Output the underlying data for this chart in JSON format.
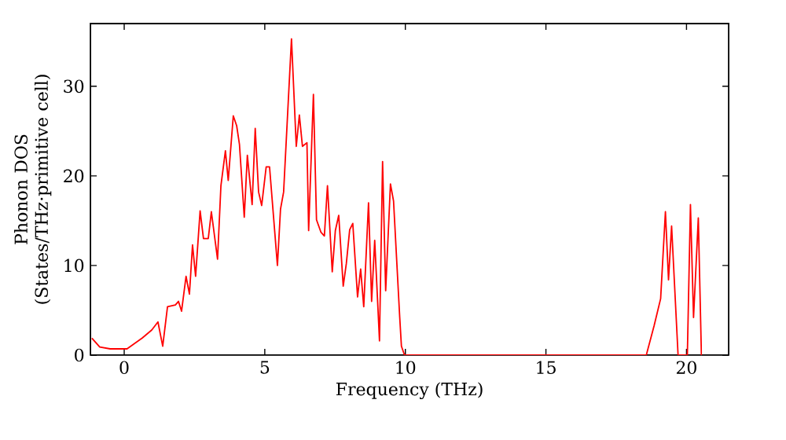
{
  "chart_data": {
    "type": "line",
    "xlabel": "Frequency (THz)",
    "ylabel": "Phonon DOS (States/THz·primitive cell)",
    "x": [
      -1.15,
      -0.87,
      -0.5,
      0.1,
      0.64,
      0.98,
      1.2,
      1.37,
      1.54,
      1.82,
      1.93,
      2.04,
      2.2,
      2.32,
      2.43,
      2.54,
      2.7,
      2.82,
      2.99,
      3.1,
      3.32,
      3.44,
      3.6,
      3.7,
      3.88,
      4.0,
      4.1,
      4.27,
      4.38,
      4.55,
      4.66,
      4.78,
      4.89,
      5.05,
      5.17,
      5.45,
      5.56,
      5.67,
      5.95,
      6.12,
      6.23,
      6.34,
      6.5,
      6.56,
      6.73,
      6.84,
      7.0,
      7.12,
      7.23,
      7.4,
      7.51,
      7.63,
      7.79,
      7.9,
      8.02,
      8.13,
      8.3,
      8.41,
      8.52,
      8.69,
      8.8,
      8.91,
      9.08,
      9.19,
      9.3,
      9.47,
      9.58,
      9.8,
      9.86,
      9.97,
      18.57,
      18.85,
      19.08,
      19.25,
      19.36,
      19.47,
      19.7,
      20.03,
      20.14,
      20.25,
      20.42,
      20.53
    ],
    "values": [
      1.9,
      0.9,
      0.7,
      0.7,
      1.9,
      2.8,
      3.7,
      1.0,
      5.4,
      5.6,
      6.0,
      4.9,
      8.8,
      6.8,
      12.3,
      8.8,
      16.1,
      13,
      13,
      16,
      10.7,
      18.9,
      22.8,
      19.5,
      26.7,
      25.6,
      23.5,
      15.4,
      22.3,
      16.8,
      25.3,
      18.2,
      16.7,
      21,
      21,
      10,
      16.3,
      18.2,
      35.3,
      23.3,
      26.8,
      23.3,
      23.7,
      13.9,
      29.1,
      15.1,
      13.7,
      13.3,
      18.9,
      9.3,
      13.9,
      15.6,
      7.7,
      10.2,
      14,
      14.7,
      6.5,
      9.6,
      5.4,
      17,
      6,
      12.8,
      1.6,
      21.6,
      7.2,
      19.1,
      17.2,
      4.2,
      1,
      0,
      0,
      3.3,
      6.3,
      16,
      8.4,
      14.4,
      0,
      0,
      16.8,
      4.2,
      15.3,
      0
    ],
    "color": "#ff0000",
    "xlim": [
      -1.2,
      21.5
    ],
    "ylim": [
      0,
      37
    ],
    "xticks": [
      0,
      5,
      10,
      15,
      20
    ],
    "yticks": [
      0,
      10,
      20,
      30
    ],
    "marker": "none",
    "line_style": "solid"
  }
}
